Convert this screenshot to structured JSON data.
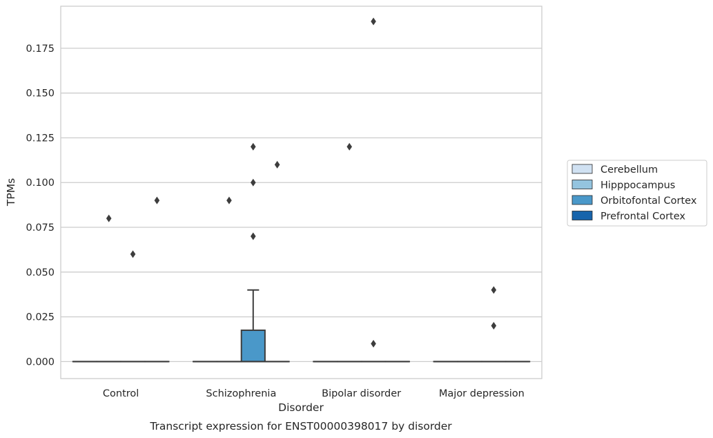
{
  "chart_data": {
    "type": "box",
    "title": "Transcript expression for ENST00000398017 by disorder",
    "xlabel": "Disorder",
    "ylabel": "TPMs",
    "categories": [
      "Control",
      "Schizophrenia",
      "Bipolar disorder",
      "Major depression"
    ],
    "ylim": [
      -0.0095,
      0.1985
    ],
    "yticks": [
      0.0,
      0.025,
      0.05,
      0.075,
      0.1,
      0.125,
      0.15,
      0.175
    ],
    "ytick_labels": [
      "0.000",
      "0.025",
      "0.050",
      "0.075",
      "0.100",
      "0.125",
      "0.150",
      "0.175"
    ],
    "grid": "horizontal",
    "legend_position": "right",
    "series": [
      {
        "name": "Cerebellum",
        "color": "#d0e1f2"
      },
      {
        "name": "Hipppocampus",
        "color": "#94c4df"
      },
      {
        "name": "Orbitofontal Cortex",
        "color": "#4a98c9"
      },
      {
        "name": "Prefrontal Cortex",
        "color": "#1764ab"
      }
    ],
    "boxes": [
      {
        "category": "Control",
        "series": "Cerebellum",
        "whisker_low": 0,
        "q1": 0,
        "median": 0,
        "q3": 0,
        "whisker_high": 0,
        "outliers": []
      },
      {
        "category": "Control",
        "series": "Hipppocampus",
        "whisker_low": 0,
        "q1": 0,
        "median": 0,
        "q3": 0,
        "whisker_high": 0,
        "outliers": [
          0.08
        ]
      },
      {
        "category": "Control",
        "series": "Orbitofontal Cortex",
        "whisker_low": 0,
        "q1": 0,
        "median": 0,
        "q3": 0,
        "whisker_high": 0,
        "outliers": [
          0.06
        ]
      },
      {
        "category": "Control",
        "series": "Prefrontal Cortex",
        "whisker_low": 0,
        "q1": 0,
        "median": 0,
        "q3": 0,
        "whisker_high": 0,
        "outliers": [
          0.09
        ]
      },
      {
        "category": "Schizophrenia",
        "series": "Cerebellum",
        "whisker_low": 0,
        "q1": 0,
        "median": 0,
        "q3": 0,
        "whisker_high": 0,
        "outliers": []
      },
      {
        "category": "Schizophrenia",
        "series": "Hipppocampus",
        "whisker_low": 0,
        "q1": 0,
        "median": 0,
        "q3": 0,
        "whisker_high": 0,
        "outliers": [
          0.09
        ]
      },
      {
        "category": "Schizophrenia",
        "series": "Orbitofontal Cortex",
        "whisker_low": 0,
        "q1": 0,
        "median": 0,
        "q3": 0.0175,
        "whisker_high": 0.04,
        "outliers": [
          0.07,
          0.1,
          0.12
        ]
      },
      {
        "category": "Schizophrenia",
        "series": "Prefrontal Cortex",
        "whisker_low": 0,
        "q1": 0,
        "median": 0,
        "q3": 0,
        "whisker_high": 0,
        "outliers": [
          0.11
        ]
      },
      {
        "category": "Bipolar disorder",
        "series": "Cerebellum",
        "whisker_low": 0,
        "q1": 0,
        "median": 0,
        "q3": 0,
        "whisker_high": 0,
        "outliers": []
      },
      {
        "category": "Bipolar disorder",
        "series": "Hipppocampus",
        "whisker_low": 0,
        "q1": 0,
        "median": 0,
        "q3": 0,
        "whisker_high": 0,
        "outliers": [
          0.12
        ]
      },
      {
        "category": "Bipolar disorder",
        "series": "Orbitofontal Cortex",
        "whisker_low": 0,
        "q1": 0,
        "median": 0,
        "q3": 0,
        "whisker_high": 0,
        "outliers": [
          0.01,
          0.19
        ]
      },
      {
        "category": "Bipolar disorder",
        "series": "Prefrontal Cortex",
        "whisker_low": 0,
        "q1": 0,
        "median": 0,
        "q3": 0,
        "whisker_high": 0,
        "outliers": []
      },
      {
        "category": "Major depression",
        "series": "Cerebellum",
        "whisker_low": 0,
        "q1": 0,
        "median": 0,
        "q3": 0,
        "whisker_high": 0,
        "outliers": []
      },
      {
        "category": "Major depression",
        "series": "Hipppocampus",
        "whisker_low": 0,
        "q1": 0,
        "median": 0,
        "q3": 0,
        "whisker_high": 0,
        "outliers": []
      },
      {
        "category": "Major depression",
        "series": "Orbitofontal Cortex",
        "whisker_low": 0,
        "q1": 0,
        "median": 0,
        "q3": 0,
        "whisker_high": 0,
        "outliers": [
          0.02,
          0.04
        ]
      },
      {
        "category": "Major depression",
        "series": "Prefrontal Cortex",
        "whisker_low": 0,
        "q1": 0,
        "median": 0,
        "q3": 0,
        "whisker_high": 0,
        "outliers": []
      }
    ]
  }
}
